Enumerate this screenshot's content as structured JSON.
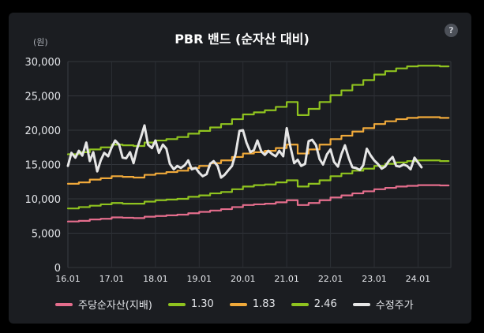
{
  "chart_data": {
    "type": "line",
    "title": "PBR 밴드 (순자산 대비)",
    "y_unit": "(원)",
    "xlabel": "",
    "ylabel": "",
    "ylim": [
      0,
      30000
    ],
    "yticks": [
      0,
      5000,
      10000,
      15000,
      20000,
      25000,
      30000
    ],
    "ytick_labels": [
      "0",
      "5,000",
      "10,000",
      "15,000",
      "20,000",
      "25,000",
      "30,000"
    ],
    "xlim": [
      2016.0,
      2024.75
    ],
    "xticks": [
      2016,
      2017,
      2018,
      2019,
      2020,
      2021,
      2022,
      2023,
      2024
    ],
    "xtick_labels": [
      "16.01",
      "17.01",
      "18.01",
      "19.01",
      "20.01",
      "21.01",
      "22.01",
      "23.01",
      "24.01"
    ],
    "grid": true,
    "legend_position": "bottom",
    "series": [
      {
        "name": "주당순자산(지배)",
        "color": "#e46d8c",
        "points": [
          [
            2016.0,
            6700
          ],
          [
            2016.25,
            6800
          ],
          [
            2016.5,
            7000
          ],
          [
            2016.75,
            7100
          ],
          [
            2017.0,
            7300
          ],
          [
            2017.25,
            7250
          ],
          [
            2017.5,
            7200
          ],
          [
            2017.75,
            7400
          ],
          [
            2018.0,
            7500
          ],
          [
            2018.25,
            7600
          ],
          [
            2018.5,
            7700
          ],
          [
            2018.75,
            7900
          ],
          [
            2019.0,
            8100
          ],
          [
            2019.25,
            8300
          ],
          [
            2019.5,
            8500
          ],
          [
            2019.75,
            8800
          ],
          [
            2020.0,
            9100
          ],
          [
            2020.25,
            9200
          ],
          [
            2020.5,
            9300
          ],
          [
            2020.75,
            9500
          ],
          [
            2021.0,
            9800
          ],
          [
            2021.25,
            9100
          ],
          [
            2021.5,
            9400
          ],
          [
            2021.75,
            9800
          ],
          [
            2022.0,
            10200
          ],
          [
            2022.25,
            10500
          ],
          [
            2022.5,
            10800
          ],
          [
            2022.75,
            11100
          ],
          [
            2023.0,
            11400
          ],
          [
            2023.25,
            11600
          ],
          [
            2023.5,
            11800
          ],
          [
            2023.75,
            11900
          ],
          [
            2024.0,
            12000
          ],
          [
            2024.25,
            12000
          ],
          [
            2024.5,
            11950
          ]
        ]
      },
      {
        "name": "1.30",
        "color": "#8fc31f",
        "points": [
          [
            2016.0,
            8600
          ],
          [
            2016.25,
            8800
          ],
          [
            2016.5,
            9000
          ],
          [
            2016.75,
            9200
          ],
          [
            2017.0,
            9400
          ],
          [
            2017.25,
            9300
          ],
          [
            2017.5,
            9300
          ],
          [
            2017.75,
            9600
          ],
          [
            2018.0,
            9800
          ],
          [
            2018.25,
            9900
          ],
          [
            2018.5,
            10000
          ],
          [
            2018.75,
            10300
          ],
          [
            2019.0,
            10500
          ],
          [
            2019.25,
            10800
          ],
          [
            2019.5,
            11000
          ],
          [
            2019.75,
            11400
          ],
          [
            2020.0,
            11800
          ],
          [
            2020.25,
            12000
          ],
          [
            2020.5,
            12100
          ],
          [
            2020.75,
            12400
          ],
          [
            2021.0,
            12700
          ],
          [
            2021.25,
            11800
          ],
          [
            2021.5,
            12200
          ],
          [
            2021.75,
            12700
          ],
          [
            2022.0,
            13300
          ],
          [
            2022.25,
            13700
          ],
          [
            2022.5,
            14100
          ],
          [
            2022.75,
            14400
          ],
          [
            2023.0,
            14800
          ],
          [
            2023.25,
            15100
          ],
          [
            2023.5,
            15300
          ],
          [
            2023.75,
            15500
          ],
          [
            2024.0,
            15600
          ],
          [
            2024.25,
            15600
          ],
          [
            2024.5,
            15500
          ]
        ]
      },
      {
        "name": "1.83",
        "color": "#f0a93a",
        "points": [
          [
            2016.0,
            12200
          ],
          [
            2016.25,
            12400
          ],
          [
            2016.5,
            12800
          ],
          [
            2016.75,
            13000
          ],
          [
            2017.0,
            13300
          ],
          [
            2017.25,
            13200
          ],
          [
            2017.5,
            13100
          ],
          [
            2017.75,
            13500
          ],
          [
            2018.0,
            13700
          ],
          [
            2018.25,
            13900
          ],
          [
            2018.5,
            14100
          ],
          [
            2018.75,
            14500
          ],
          [
            2019.0,
            14800
          ],
          [
            2019.25,
            15200
          ],
          [
            2019.5,
            15600
          ],
          [
            2019.75,
            16100
          ],
          [
            2020.0,
            16600
          ],
          [
            2020.25,
            16800
          ],
          [
            2020.5,
            17000
          ],
          [
            2020.75,
            17400
          ],
          [
            2021.0,
            17900
          ],
          [
            2021.25,
            16600
          ],
          [
            2021.5,
            17200
          ],
          [
            2021.75,
            17900
          ],
          [
            2022.0,
            18700
          ],
          [
            2022.25,
            19200
          ],
          [
            2022.5,
            19800
          ],
          [
            2022.75,
            20300
          ],
          [
            2023.0,
            20900
          ],
          [
            2023.25,
            21300
          ],
          [
            2023.5,
            21600
          ],
          [
            2023.75,
            21800
          ],
          [
            2024.0,
            21900
          ],
          [
            2024.25,
            21900
          ],
          [
            2024.5,
            21800
          ]
        ]
      },
      {
        "name": "2.46",
        "color": "#8fc31f",
        "points": [
          [
            2016.0,
            16500
          ],
          [
            2016.25,
            16800
          ],
          [
            2016.5,
            17200
          ],
          [
            2016.75,
            17500
          ],
          [
            2017.0,
            17900
          ],
          [
            2017.25,
            17800
          ],
          [
            2017.5,
            17700
          ],
          [
            2017.75,
            18200
          ],
          [
            2018.0,
            18500
          ],
          [
            2018.25,
            18700
          ],
          [
            2018.5,
            19000
          ],
          [
            2018.75,
            19500
          ],
          [
            2019.0,
            19900
          ],
          [
            2019.25,
            20400
          ],
          [
            2019.5,
            20900
          ],
          [
            2019.75,
            21600
          ],
          [
            2020.0,
            22300
          ],
          [
            2020.25,
            22600
          ],
          [
            2020.5,
            22900
          ],
          [
            2020.75,
            23400
          ],
          [
            2021.0,
            24100
          ],
          [
            2021.25,
            22200
          ],
          [
            2021.5,
            23100
          ],
          [
            2021.75,
            24100
          ],
          [
            2022.0,
            25100
          ],
          [
            2022.25,
            25800
          ],
          [
            2022.5,
            26600
          ],
          [
            2022.75,
            27300
          ],
          [
            2023.0,
            28100
          ],
          [
            2023.25,
            28600
          ],
          [
            2023.5,
            29000
          ],
          [
            2023.75,
            29300
          ],
          [
            2024.0,
            29400
          ],
          [
            2024.25,
            29400
          ],
          [
            2024.5,
            29300
          ]
        ]
      },
      {
        "name": "수정주가",
        "color": "#e6e6e6",
        "points": [
          [
            2016.0,
            14800
          ],
          [
            2016.08,
            16700
          ],
          [
            2016.17,
            16000
          ],
          [
            2016.25,
            17000
          ],
          [
            2016.33,
            16300
          ],
          [
            2016.42,
            18200
          ],
          [
            2016.5,
            15500
          ],
          [
            2016.58,
            16800
          ],
          [
            2016.67,
            14000
          ],
          [
            2016.75,
            15600
          ],
          [
            2016.83,
            16700
          ],
          [
            2016.92,
            16200
          ],
          [
            2017.0,
            17500
          ],
          [
            2017.08,
            18500
          ],
          [
            2017.17,
            17900
          ],
          [
            2017.25,
            16000
          ],
          [
            2017.33,
            15900
          ],
          [
            2017.42,
            16800
          ],
          [
            2017.5,
            15200
          ],
          [
            2017.58,
            17300
          ],
          [
            2017.67,
            19000
          ],
          [
            2017.75,
            20700
          ],
          [
            2017.83,
            17900
          ],
          [
            2017.92,
            17400
          ],
          [
            2018.0,
            18500
          ],
          [
            2018.08,
            16700
          ],
          [
            2018.17,
            17900
          ],
          [
            2018.25,
            17300
          ],
          [
            2018.33,
            15100
          ],
          [
            2018.42,
            14300
          ],
          [
            2018.5,
            14800
          ],
          [
            2018.58,
            14500
          ],
          [
            2018.67,
            14900
          ],
          [
            2018.75,
            15600
          ],
          [
            2018.83,
            14300
          ],
          [
            2018.92,
            14500
          ],
          [
            2019.0,
            13800
          ],
          [
            2019.08,
            13300
          ],
          [
            2019.17,
            13600
          ],
          [
            2019.25,
            15100
          ],
          [
            2019.33,
            15500
          ],
          [
            2019.42,
            14800
          ],
          [
            2019.5,
            13100
          ],
          [
            2019.58,
            13500
          ],
          [
            2019.67,
            14200
          ],
          [
            2019.75,
            14800
          ],
          [
            2019.83,
            16500
          ],
          [
            2019.92,
            19900
          ],
          [
            2020.0,
            20000
          ],
          [
            2020.08,
            18200
          ],
          [
            2020.17,
            16800
          ],
          [
            2020.25,
            17100
          ],
          [
            2020.33,
            18500
          ],
          [
            2020.42,
            16900
          ],
          [
            2020.5,
            16400
          ],
          [
            2020.58,
            17000
          ],
          [
            2020.67,
            16500
          ],
          [
            2020.75,
            16200
          ],
          [
            2020.83,
            17000
          ],
          [
            2020.92,
            16200
          ],
          [
            2021.0,
            20300
          ],
          [
            2021.08,
            17700
          ],
          [
            2021.17,
            15200
          ],
          [
            2021.25,
            15700
          ],
          [
            2021.33,
            14800
          ],
          [
            2021.42,
            15100
          ],
          [
            2021.5,
            18400
          ],
          [
            2021.58,
            18600
          ],
          [
            2021.67,
            17800
          ],
          [
            2021.75,
            15800
          ],
          [
            2021.83,
            15000
          ],
          [
            2021.92,
            16500
          ],
          [
            2022.0,
            17200
          ],
          [
            2022.08,
            15400
          ],
          [
            2022.17,
            14700
          ],
          [
            2022.25,
            16500
          ],
          [
            2022.33,
            17800
          ],
          [
            2022.42,
            15900
          ],
          [
            2022.5,
            14600
          ],
          [
            2022.58,
            14500
          ],
          [
            2022.67,
            14200
          ],
          [
            2022.75,
            14900
          ],
          [
            2022.83,
            17300
          ],
          [
            2022.92,
            16300
          ],
          [
            2023.0,
            15600
          ],
          [
            2023.08,
            15100
          ],
          [
            2023.17,
            14400
          ],
          [
            2023.25,
            14700
          ],
          [
            2023.33,
            15500
          ],
          [
            2023.42,
            16100
          ],
          [
            2023.5,
            14800
          ],
          [
            2023.58,
            14700
          ],
          [
            2023.67,
            15000
          ],
          [
            2023.75,
            14800
          ],
          [
            2023.83,
            14300
          ],
          [
            2023.92,
            16000
          ],
          [
            2024.0,
            15300
          ],
          [
            2024.08,
            14600
          ]
        ]
      }
    ]
  },
  "ui": {
    "help_label": "?"
  }
}
